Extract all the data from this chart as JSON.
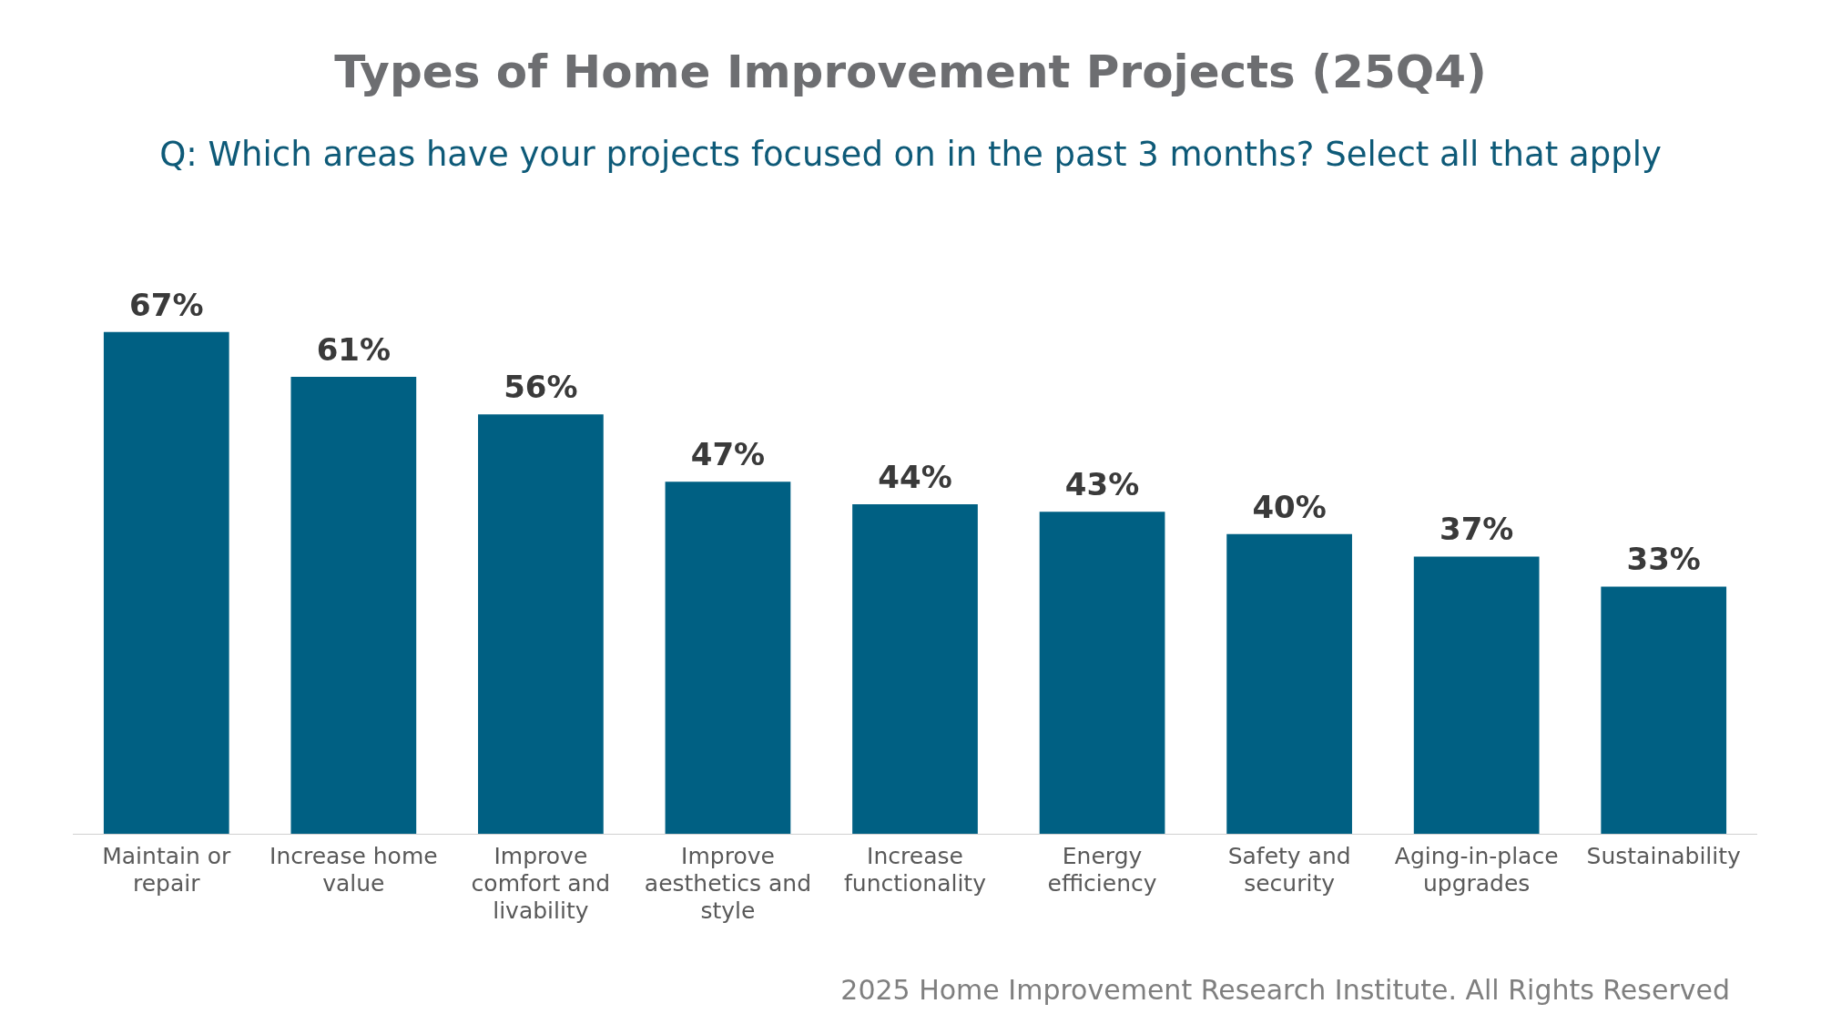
{
  "chart_data": {
    "type": "bar",
    "title": "Types of Home Improvement Projects (25Q4)",
    "subtitle": "Q: Which areas have your projects focused on in the past 3 months?  Select all that apply",
    "categories": [
      "Maintain or repair",
      "Increase home value",
      "Improve comfort and livability",
      "Improve aesthetics and style",
      "Increase functionality",
      "Energy efficiency",
      "Safety and security",
      "Aging-in-place upgrades",
      "Sustainability"
    ],
    "values": [
      67,
      61,
      56,
      47,
      44,
      43,
      40,
      37,
      33
    ],
    "value_labels": [
      "67%",
      "61%",
      "56%",
      "47%",
      "44%",
      "43%",
      "40%",
      "37%",
      "33%"
    ],
    "color": "#006083",
    "grid": false,
    "legend": false,
    "tick_labels": "x",
    "annotations": [
      "2025 Home Improvement Research Institute. All Rights Reserved"
    ]
  }
}
